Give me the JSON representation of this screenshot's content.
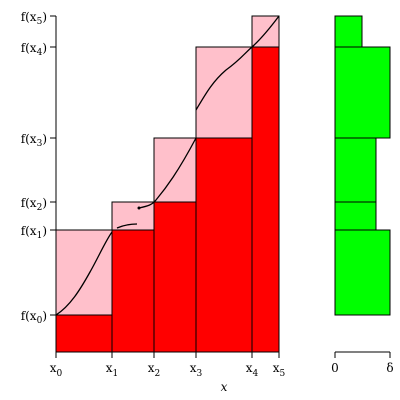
{
  "figure": {
    "y_labels": [
      {
        "base": "f(x",
        "sub": "0",
        "close": ")"
      },
      {
        "base": "f(x",
        "sub": "1",
        "close": ")"
      },
      {
        "base": "f(x",
        "sub": "2",
        "close": ")"
      },
      {
        "base": "f(x",
        "sub": "3",
        "close": ")"
      },
      {
        "base": "f(x",
        "sub": "4",
        "close": ")"
      },
      {
        "base": "f(x",
        "sub": "5",
        "close": ")"
      }
    ],
    "x_labels": [
      {
        "base": "x",
        "sub": "0"
      },
      {
        "base": "x",
        "sub": "1"
      },
      {
        "base": "x",
        "sub": "2"
      },
      {
        "base": "x",
        "sub": "3"
      },
      {
        "base": "x",
        "sub": "4"
      },
      {
        "base": "x",
        "sub": "5"
      }
    ],
    "x_axis_label": "x",
    "right_labels": {
      "zero": "0",
      "delta": "δ"
    },
    "colors": {
      "lower_rect": "#ff0000",
      "upper_rect": "#ffc0cb",
      "difference_bar": "#00ff00",
      "outline": "#000000"
    }
  }
}
